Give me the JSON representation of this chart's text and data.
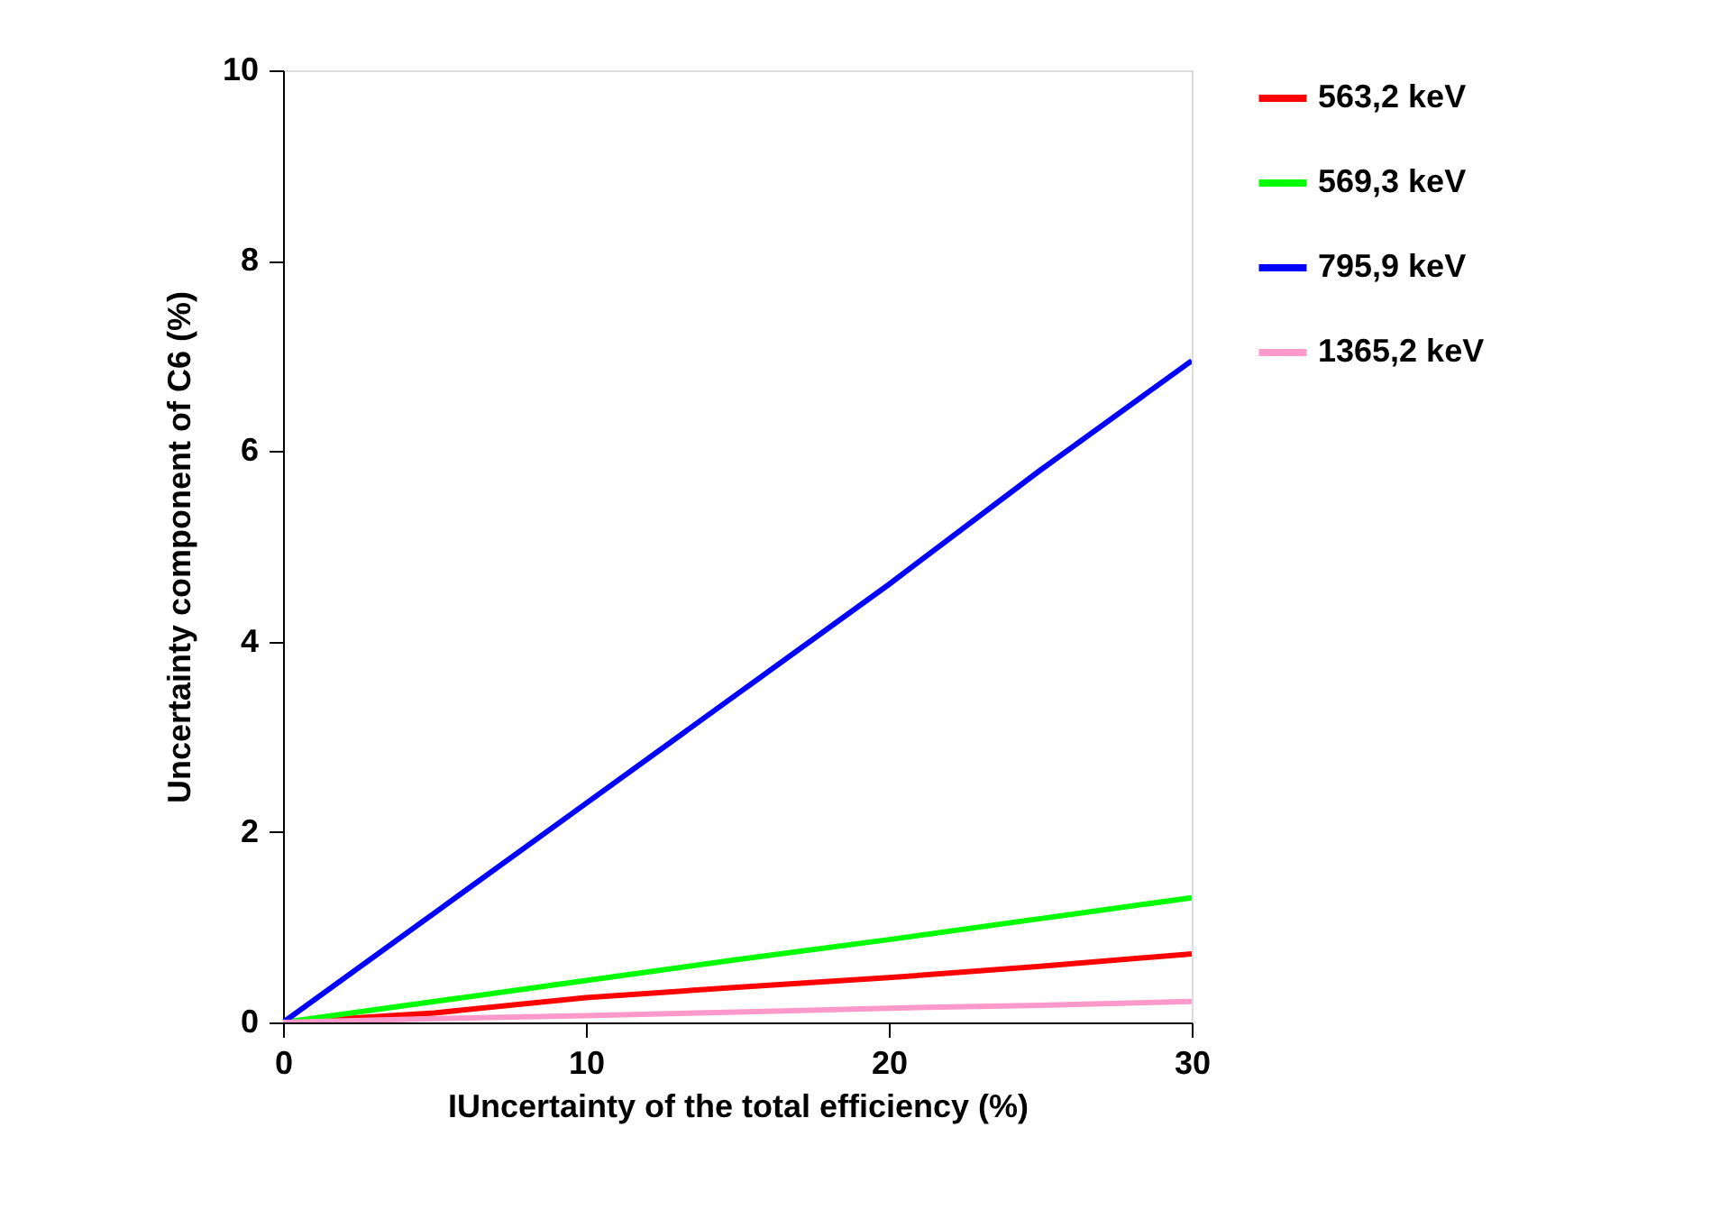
{
  "chart_data": {
    "type": "line",
    "xlabel": "IUncertainty of the total efficiency (%)",
    "ylabel": "Uncertainty component of C6  (%)",
    "x": [
      0,
      5,
      10,
      15,
      20,
      25,
      30
    ],
    "xlim": [
      0,
      30
    ],
    "xticks": [
      0,
      10,
      20,
      30
    ],
    "ylim": [
      0,
      10
    ],
    "yticks": [
      0,
      2,
      4,
      6,
      8,
      10
    ],
    "grid": false,
    "legend": "top right",
    "marker": "none",
    "line_style": "solid",
    "series": [
      {
        "name": "563,2 keV",
        "color": "#ff0000",
        "values": [
          0,
          0.1,
          0.26,
          0.37,
          0.47,
          0.59,
          0.72
        ]
      },
      {
        "name": "569,3 keV",
        "color": "#00ff00",
        "values": [
          0,
          0.22,
          0.44,
          0.66,
          0.87,
          1.09,
          1.31
        ]
      },
      {
        "name": "795,9 keV",
        "color": "#0000ff",
        "values": [
          0,
          1.15,
          2.3,
          3.45,
          4.6,
          5.8,
          6.95
        ]
      },
      {
        "name": "1365,2 keV",
        "color": "#ff99cc",
        "values": [
          0,
          0.04,
          0.07,
          0.11,
          0.15,
          0.18,
          0.22
        ]
      }
    ]
  }
}
